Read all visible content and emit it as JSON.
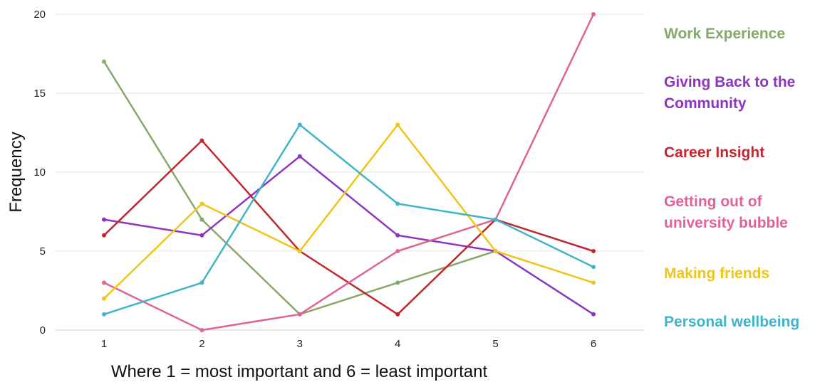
{
  "chart_data": {
    "type": "line",
    "title": "",
    "xlabel": "Where 1 = most important and 6 = least important",
    "ylabel": "Frequency",
    "x": [
      1,
      2,
      3,
      4,
      5,
      6
    ],
    "x_tick_labels": [
      "1",
      "2",
      "3",
      "4",
      "5",
      "6"
    ],
    "y_ticks": [
      0,
      5,
      10,
      15,
      20
    ],
    "y_tick_labels": [
      "0",
      "5",
      "10",
      "15",
      "20"
    ],
    "ylim": [
      0,
      20
    ],
    "grid": true,
    "legend_position": "right",
    "series": [
      {
        "name": "Work Experience",
        "color": "#86a86a",
        "values": [
          17,
          7,
          1,
          3,
          5,
          null
        ]
      },
      {
        "name": "Giving Back to the\nCommunity",
        "color": "#8e34c0",
        "values": [
          7,
          6,
          11,
          6,
          5,
          1
        ]
      },
      {
        "name": "Career Insight",
        "color": "#c0282f",
        "values": [
          6,
          12,
          5,
          1,
          7,
          5
        ]
      },
      {
        "name": "Getting out of\nuniversity bubble",
        "color": "#e0629a",
        "values": [
          3,
          0,
          1,
          5,
          7,
          20
        ]
      },
      {
        "name": "Making friends",
        "color": "#f0c419",
        "values": [
          2,
          8,
          5,
          13,
          5,
          3
        ]
      },
      {
        "name": "Personal wellbeing",
        "color": "#40b4c8",
        "values": [
          1,
          3,
          13,
          8,
          7,
          4
        ]
      }
    ]
  }
}
